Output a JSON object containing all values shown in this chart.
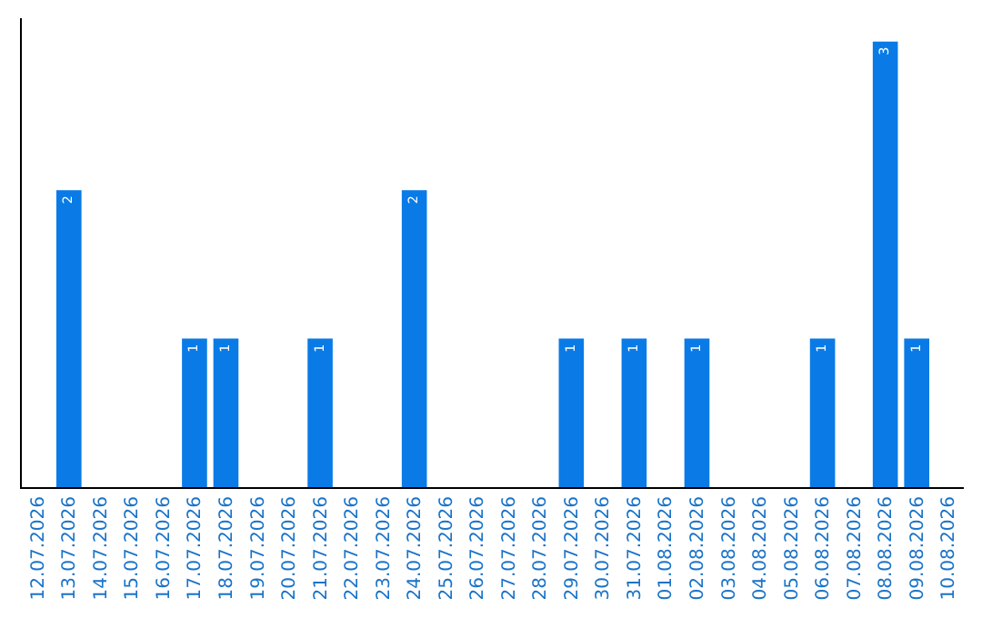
{
  "chart_data": {
    "type": "bar",
    "categories": [
      "12.07.2026",
      "13.07.2026",
      "14.07.2026",
      "15.07.2026",
      "16.07.2026",
      "17.07.2026",
      "18.07.2026",
      "19.07.2026",
      "20.07.2026",
      "21.07.2026",
      "22.07.2026",
      "23.07.2026",
      "24.07.2026",
      "25.07.2026",
      "26.07.2026",
      "27.07.2026",
      "28.07.2026",
      "29.07.2026",
      "30.07.2026",
      "31.07.2026",
      "01.08.2026",
      "02.08.2026",
      "03.08.2026",
      "04.08.2026",
      "05.08.2026",
      "06.08.2026",
      "07.08.2026",
      "08.08.2026",
      "09.08.2026",
      "10.08.2026"
    ],
    "values": [
      0,
      2,
      0,
      0,
      0,
      1,
      1,
      0,
      0,
      1,
      0,
      0,
      2,
      0,
      0,
      0,
      0,
      1,
      0,
      1,
      0,
      1,
      0,
      0,
      0,
      1,
      0,
      3,
      1,
      0
    ],
    "value_labels": [
      null,
      "2",
      null,
      null,
      null,
      "1",
      "1",
      null,
      null,
      "1",
      null,
      null,
      "2",
      null,
      null,
      null,
      null,
      "1",
      null,
      "1",
      null,
      "1",
      null,
      null,
      null,
      "1",
      null,
      "3",
      "1",
      null
    ],
    "color": "#0a7be6",
    "tick_labels": "x"
  }
}
